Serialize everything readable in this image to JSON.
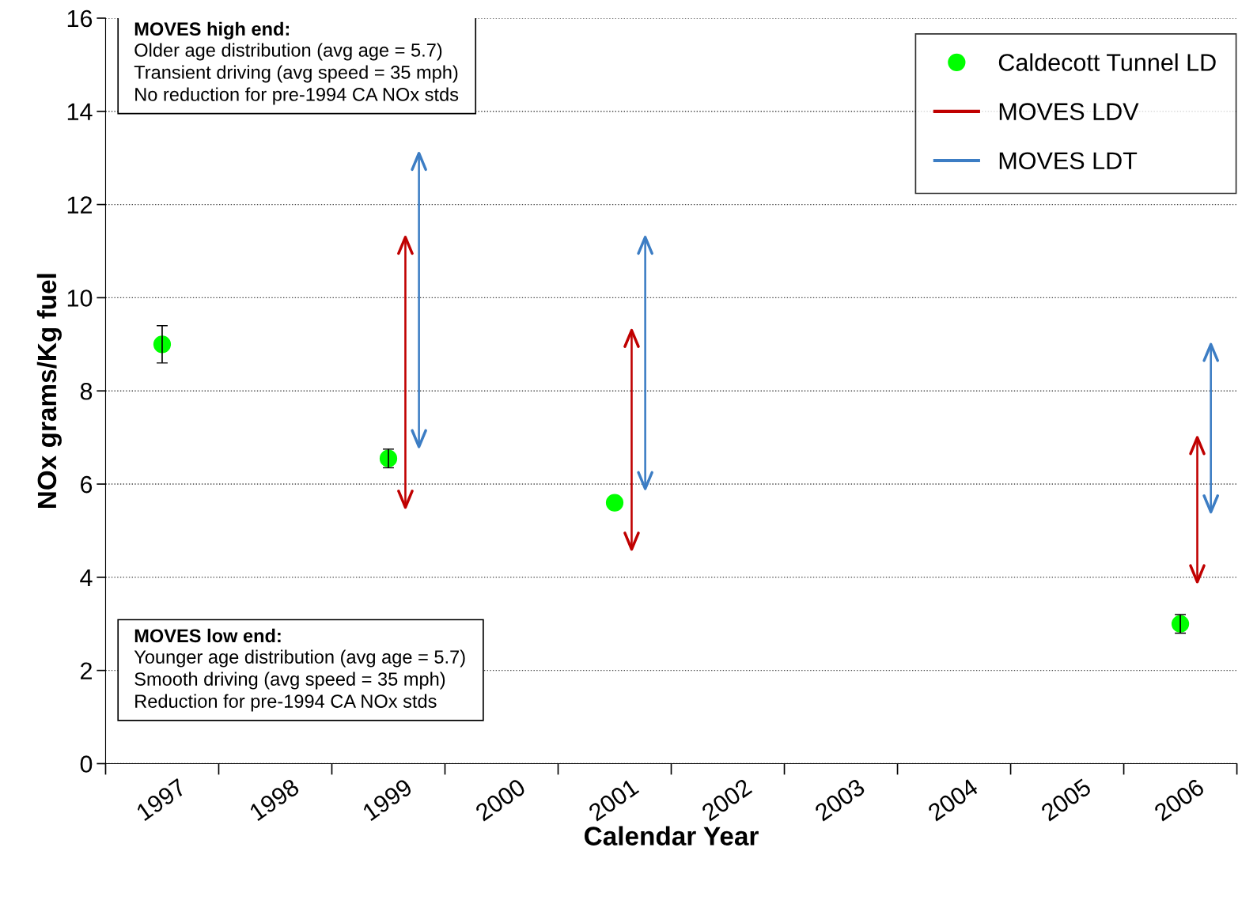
{
  "chart_data": {
    "type": "scatter",
    "xlabel": "Calendar Year",
    "ylabel": "NOx grams/Kg fuel",
    "categories": [
      "1997",
      "1998",
      "1999",
      "2000",
      "2001",
      "2002",
      "2003",
      "2004",
      "2005",
      "2006"
    ],
    "series": [
      {
        "name": "Caldecott Tunnel LD",
        "color": "#00ff00",
        "marker": "circle",
        "values": [
          9.0,
          null,
          6.55,
          null,
          5.6,
          null,
          null,
          null,
          null,
          3.0
        ],
        "errors": [
          0.4,
          null,
          0.2,
          null,
          null,
          null,
          null,
          null,
          null,
          0.2
        ]
      },
      {
        "name": "MOVES LDV",
        "type": "bar",
        "color": "#c00000",
        "base": [
          null,
          null,
          5.5,
          null,
          4.6,
          null,
          null,
          null,
          null,
          3.9
        ],
        "values": [
          null,
          null,
          5.8,
          null,
          4.7,
          null,
          null,
          null,
          null,
          3.1
        ]
      },
      {
        "name": "MOVES LDT",
        "type": "bar",
        "color": "#3c7dc4",
        "base": [
          null,
          null,
          6.8,
          null,
          5.9,
          null,
          null,
          null,
          null,
          5.4
        ],
        "values": [
          null,
          null,
          6.3,
          null,
          5.4,
          null,
          null,
          null,
          null,
          3.6
        ]
      }
    ],
    "ylim": [
      0,
      16
    ],
    "yticks": [
      0,
      2,
      4,
      6,
      8,
      10,
      12,
      14,
      16
    ],
    "grid": "y",
    "legend": "top right",
    "annotations": [
      "MOVES high end:\nOlder age distribution (avg age = 5.7)\nTransient driving (avg speed = 35 mph)\nNo reduction for pre-1994 CA NOx stds",
      "MOVES low end:\nYounger age distribution (avg age = 5.7)\nSmooth driving (avg speed = 35 mph)\nReduction for pre-1994 CA NOx stds"
    ]
  }
}
